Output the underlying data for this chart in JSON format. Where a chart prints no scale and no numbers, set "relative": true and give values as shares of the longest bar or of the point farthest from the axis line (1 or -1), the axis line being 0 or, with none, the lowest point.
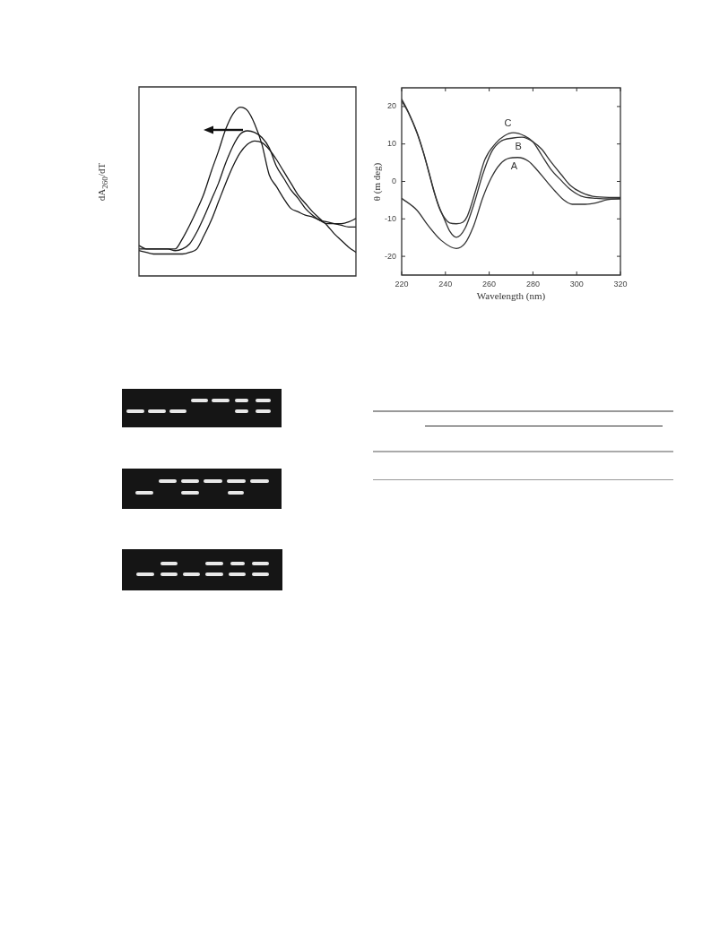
{
  "chart_data": [
    {
      "type": "line",
      "ylabel": "dA$_{260}$/dT",
      "relative": true,
      "legend": false,
      "grid": false,
      "marker": "none",
      "line_style": "solid",
      "categories": [
        null,
        null,
        null,
        null,
        null,
        null,
        null,
        null,
        null,
        null,
        null,
        null,
        null,
        null,
        null,
        null,
        null,
        null,
        null,
        null,
        null,
        null,
        null,
        null,
        null,
        null,
        null,
        null,
        null,
        null,
        null
      ],
      "series": [
        {
          "color": "#1a1a1a",
          "values": [
            0.18,
            0.16,
            0.16,
            0.16,
            0.16,
            0.16,
            0.22,
            0.3,
            0.39,
            0.49,
            0.62,
            0.74,
            0.87,
            0.96,
            1.0,
            0.98,
            0.9,
            0.78,
            0.6,
            0.53,
            0.46,
            0.4,
            0.38,
            0.36,
            0.35,
            0.33,
            0.32,
            0.31,
            0.3,
            0.29,
            0.29
          ]
        },
        {
          "color": "#1a1a1a",
          "values": [
            0.16,
            0.16,
            0.16,
            0.16,
            0.16,
            0.15,
            0.16,
            0.19,
            0.26,
            0.35,
            0.45,
            0.55,
            0.67,
            0.77,
            0.84,
            0.86,
            0.85,
            0.82,
            0.76,
            0.65,
            0.58,
            0.51,
            0.46,
            0.4,
            0.36,
            0.33,
            0.31,
            0.31,
            0.31,
            0.32,
            0.34
          ]
        },
        {
          "color": "#1a1a1a",
          "values": [
            0.15,
            0.14,
            0.13,
            0.13,
            0.13,
            0.13,
            0.13,
            0.14,
            0.16,
            0.24,
            0.33,
            0.44,
            0.55,
            0.65,
            0.73,
            0.78,
            0.8,
            0.79,
            0.75,
            0.69,
            0.62,
            0.55,
            0.48,
            0.43,
            0.38,
            0.34,
            0.3,
            0.25,
            0.21,
            0.17,
            0.14
          ]
        }
      ]
    },
    {
      "type": "line",
      "xlabel": "Wavelength (nm)",
      "ylabel": "θ (m deg)",
      "legend": false,
      "grid": false,
      "marker": "none",
      "line_style": "solid",
      "xlim": [
        220,
        320
      ],
      "xticks": [
        220,
        240,
        260,
        280,
        300,
        320
      ],
      "ylim": [
        -25,
        25
      ],
      "yticks": [
        -20,
        -10,
        0,
        10,
        20
      ],
      "series": [
        {
          "name": "A",
          "color": "#333333",
          "x": [
            220,
            227,
            232,
            238,
            245,
            249,
            253,
            257,
            261,
            265,
            269,
            273,
            278,
            282,
            286,
            290,
            294,
            298,
            304,
            309,
            314,
            320
          ],
          "values": [
            -4.5,
            -7.7,
            -11.7,
            -15.7,
            -17.9,
            -16.5,
            -11.7,
            -4.5,
            1.0,
            4.6,
            6.2,
            6.4,
            5.4,
            3.0,
            0.2,
            -2.5,
            -4.9,
            -6.1,
            -6.1,
            -5.7,
            -4.9,
            -4.5
          ]
        },
        {
          "name": "B",
          "color": "#333333",
          "x": [
            220,
            223,
            227,
            230,
            232,
            235,
            237,
            239,
            242,
            245,
            249,
            253,
            257,
            261,
            265,
            271,
            275,
            280,
            284,
            288,
            293,
            297,
            302,
            309,
            320
          ],
          "values": [
            21.5,
            18.4,
            12.9,
            7.5,
            3.3,
            -3.2,
            -6.8,
            -9.4,
            -13.3,
            -14.9,
            -12.5,
            -6.1,
            1.8,
            7.8,
            10.6,
            11.6,
            11.8,
            10.6,
            8.6,
            5.4,
            1.8,
            -1.0,
            -2.9,
            -4.1,
            -4.3
          ]
        },
        {
          "name": "C",
          "color": "#333333",
          "x": [
            220,
            223,
            227,
            230,
            232,
            235,
            237,
            239,
            242,
            245,
            248,
            250,
            254,
            258,
            263,
            267,
            271,
            276,
            280,
            284,
            288,
            293,
            297,
            302,
            309,
            320
          ],
          "values": [
            22.0,
            18.6,
            13.1,
            7.7,
            3.5,
            -3.0,
            -6.6,
            -9.2,
            -11.1,
            -11.3,
            -10.9,
            -9.3,
            -2.1,
            5.8,
            10.2,
            12.2,
            13.0,
            12.2,
            10.6,
            7.0,
            3.4,
            0.2,
            -2.1,
            -3.9,
            -4.5,
            -4.7
          ]
        }
      ]
    }
  ]
}
